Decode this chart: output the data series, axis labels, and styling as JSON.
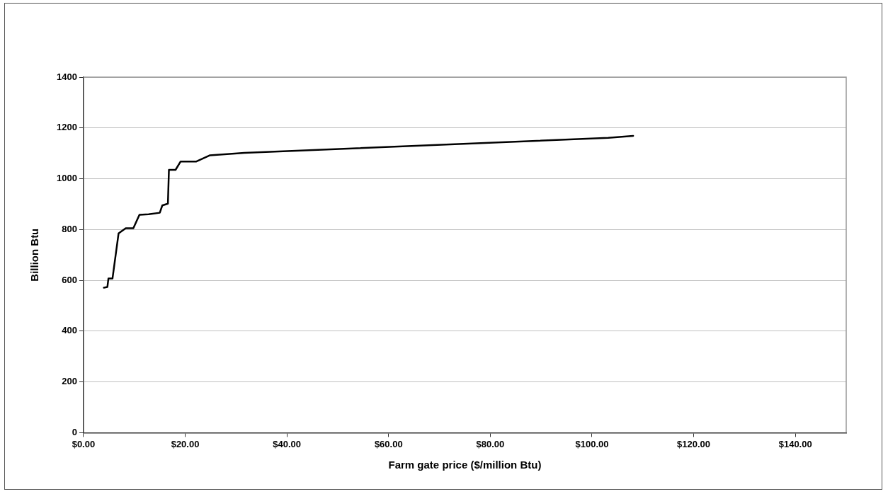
{
  "chart_data": {
    "type": "line",
    "xlabel": "Farm gate price ($/million Btu)",
    "ylabel": "Billion Btu",
    "xlim": [
      0,
      150
    ],
    "xticks": [
      {
        "value": 0,
        "label": "$0.00"
      },
      {
        "value": 20,
        "label": "$20.00"
      },
      {
        "value": 40,
        "label": "$40.00"
      },
      {
        "value": 60,
        "label": "$60.00"
      },
      {
        "value": 80,
        "label": "$80.00"
      },
      {
        "value": 100,
        "label": "$100.00"
      },
      {
        "value": 120,
        "label": "$120.00"
      },
      {
        "value": 140,
        "label": "$140.00"
      }
    ],
    "ylim": [
      0,
      1400
    ],
    "yticks": [
      0,
      200,
      400,
      600,
      800,
      1000,
      1200,
      1400
    ],
    "grid": "y",
    "marker": "none",
    "line_style": "solid",
    "series": [
      {
        "color": "#000000",
        "x": [
          4.0,
          4.7,
          4.9,
          5.7,
          6.9,
          8.3,
          9.8,
          11.0,
          12.8,
          15.0,
          15.5,
          16.6,
          16.8,
          18.1,
          19.1,
          22.2,
          24.8,
          30.2,
          31.6,
          103.2,
          108.1
        ],
        "values": [
          571,
          574,
          607,
          607,
          785,
          805,
          805,
          858,
          860,
          866,
          895,
          902,
          1035,
          1035,
          1068,
          1068,
          1092,
          1100,
          1102,
          1161,
          1169
        ]
      }
    ]
  }
}
